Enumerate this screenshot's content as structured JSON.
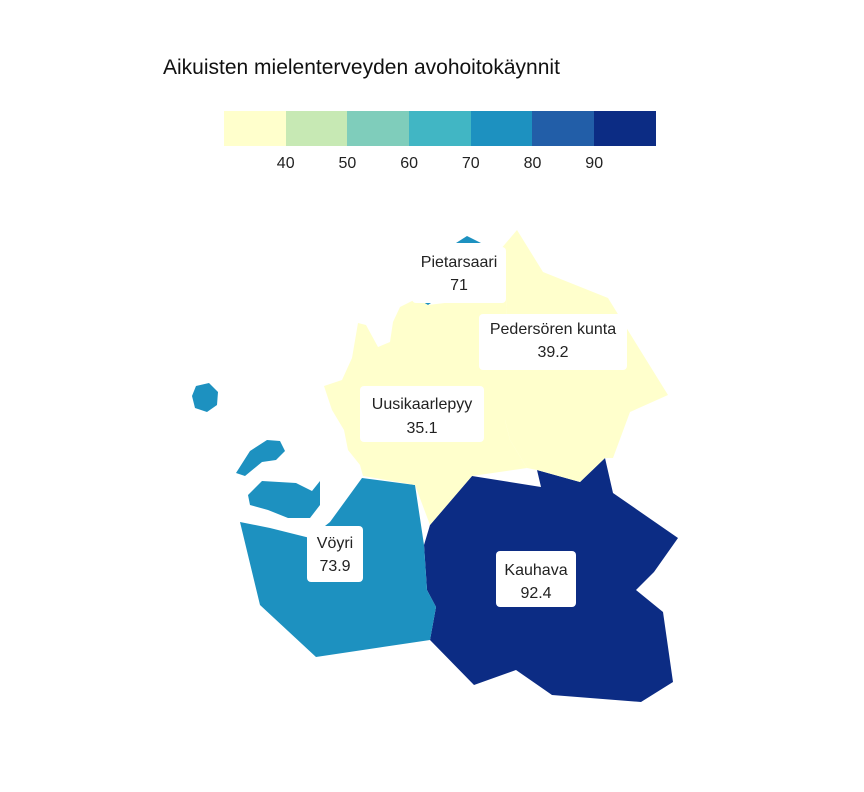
{
  "title": "Aikuisten mielenterveyden avohoitokäynnit",
  "legend": {
    "colors": [
      "#ffffcc",
      "#c7e9b4",
      "#7fcdbb",
      "#41b6c4",
      "#1d91c0",
      "#225ea8",
      "#0c2c84"
    ],
    "ticks": [
      "40",
      "50",
      "60",
      "70",
      "80",
      "90"
    ]
  },
  "regions": [
    {
      "name": "Pietarsaari",
      "value": "71",
      "color": "#1d91c0"
    },
    {
      "name": "Pedersören kunta",
      "value": "39.2",
      "color": "#ffffcc"
    },
    {
      "name": "Uusikaarlepyy",
      "value": "35.1",
      "color": "#ffffcc"
    },
    {
      "name": "Vöyri",
      "value": "73.9",
      "color": "#1d91c0"
    },
    {
      "name": "Kauhava",
      "value": "92.4",
      "color": "#0c2c84"
    }
  ]
}
